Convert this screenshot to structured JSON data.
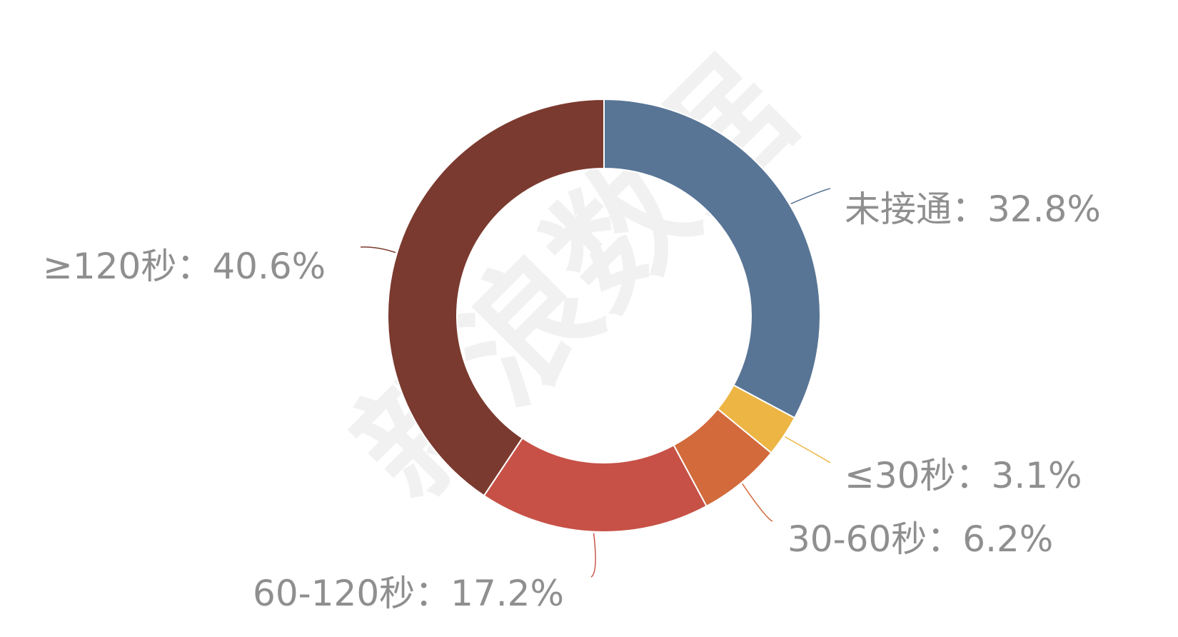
{
  "chart_data": {
    "type": "pie",
    "variant": "donut",
    "title": "",
    "slices": [
      {
        "label": "未接通",
        "value": 32.8,
        "display": "未接通：32.8%",
        "color": "#587596"
      },
      {
        "label": "≤30秒",
        "value": 3.1,
        "display": "≤30秒：3.1%",
        "color": "#ecb544"
      },
      {
        "label": "30-60秒",
        "value": 6.2,
        "display": "30-60秒：6.2%",
        "color": "#d26a3c"
      },
      {
        "label": "60-120秒",
        "value": 17.2,
        "display": "60-120秒：17.2%",
        "color": "#c75147"
      },
      {
        "label": "≥120秒",
        "value": 40.6,
        "display": "≥120秒：40.6%",
        "color": "#7b3a2f"
      }
    ],
    "start_angle": "12 o'clock",
    "direction": "clockwise",
    "legend": "none",
    "labels": "outside with leader lines"
  },
  "watermark": "新浪数据"
}
